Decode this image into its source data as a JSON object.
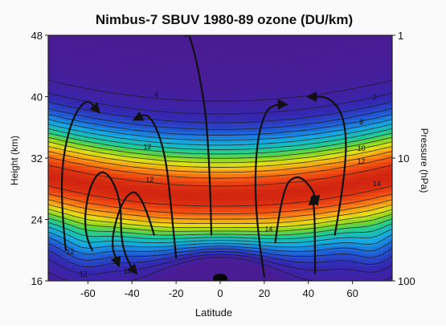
{
  "chart_data": {
    "type": "heatmap",
    "title": "Nimbus-7 SBUV 1980-89 ozone (DU/km)",
    "xlabel": "Latitude",
    "ylabel": "Height (km)",
    "y2label": "Pressure (hPa)",
    "xlim": [
      -78,
      78
    ],
    "ylim": [
      16,
      48
    ],
    "x_ticks": [
      -60,
      -40,
      -20,
      0,
      20,
      40,
      60
    ],
    "x_tick_labels": [
      "-60",
      "-40",
      "-20",
      "0",
      "20",
      "40",
      "60"
    ],
    "y_ticks": [
      16,
      24,
      32,
      40,
      48
    ],
    "y_tick_labels": [
      "16",
      "24",
      "32",
      "40",
      "48"
    ],
    "y2_ticks": [
      {
        "height": 48,
        "label": "1"
      },
      {
        "height": 32,
        "label": "10"
      },
      {
        "height": 16,
        "label": "100"
      }
    ],
    "contour_labels": [
      {
        "x": -29,
        "y": 40.2,
        "text": "4"
      },
      {
        "x": 70,
        "y": 39.9,
        "text": "2"
      },
      {
        "x": 64,
        "y": 36.6,
        "text": "8"
      },
      {
        "x": -33,
        "y": 33.4,
        "text": "12"
      },
      {
        "x": 64,
        "y": 33.2,
        "text": "10"
      },
      {
        "x": 64,
        "y": 31.5,
        "text": "12"
      },
      {
        "x": -32,
        "y": 29.1,
        "text": "12"
      },
      {
        "x": 71,
        "y": 28.6,
        "text": "14"
      },
      {
        "x": 22,
        "y": 22.7,
        "text": "14"
      },
      {
        "x": -68,
        "y": 19.7,
        "text": "12"
      },
      {
        "x": -62,
        "y": 16.8,
        "text": "12"
      },
      {
        "x": -42,
        "y": 17.2,
        "text": "10"
      }
    ],
    "circulation_arrows": [
      {
        "points": [
          [
            -70,
            20
          ],
          [
            -73,
            28
          ],
          [
            -69,
            36
          ],
          [
            -61,
            40
          ],
          [
            -55,
            38
          ]
        ]
      },
      {
        "points": [
          [
            -58,
            20
          ],
          [
            -62,
            22
          ],
          [
            -60,
            28
          ],
          [
            -53,
            31
          ],
          [
            -45,
            27
          ],
          [
            -45,
            21
          ],
          [
            -41,
            18
          ],
          [
            -38,
            17
          ]
        ]
      },
      {
        "points": [
          [
            -20,
            19
          ],
          [
            -22,
            25
          ],
          [
            -25,
            33
          ],
          [
            -32,
            38
          ],
          [
            -39,
            37
          ]
        ]
      },
      {
        "points": [
          [
            -30,
            22
          ],
          [
            -36,
            28
          ],
          [
            -44,
            27
          ],
          [
            -50,
            21
          ],
          [
            -46,
            18
          ]
        ]
      },
      {
        "points": [
          [
            -4,
            22
          ],
          [
            -5,
            35
          ],
          [
            -10,
            44
          ],
          [
            -15,
            49
          ]
        ]
      },
      {
        "points": [
          [
            20,
            16.5
          ],
          [
            16,
            24
          ],
          [
            16,
            33
          ],
          [
            20,
            38
          ],
          [
            25,
            39
          ],
          [
            30,
            39
          ]
        ]
      },
      {
        "points": [
          [
            25,
            21
          ],
          [
            28,
            28
          ],
          [
            35,
            30
          ],
          [
            42,
            28
          ],
          [
            44,
            26
          ]
        ]
      },
      {
        "points": [
          [
            43,
            17
          ],
          [
            43,
            24
          ],
          [
            42,
            27
          ]
        ]
      },
      {
        "points": [
          [
            52,
            22
          ],
          [
            57,
            30
          ],
          [
            57,
            37
          ],
          [
            50,
            40
          ],
          [
            40,
            40
          ]
        ]
      }
    ],
    "colorbar": "none",
    "grid": false,
    "legend": "none"
  }
}
